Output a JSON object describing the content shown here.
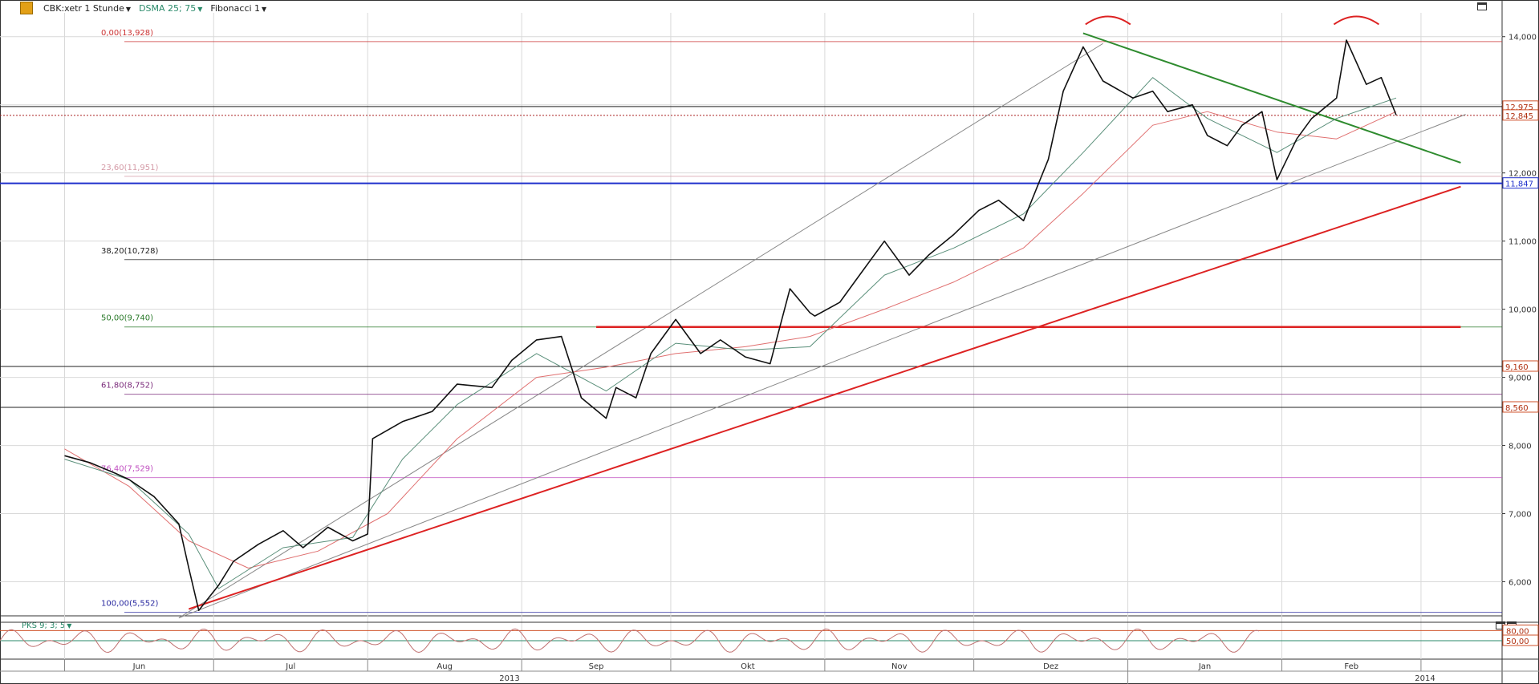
{
  "header": {
    "symbol": "CBK:xetr 1 Stunde",
    "indicator": "DSMA 25; 75",
    "tool": "Fibonacci 1"
  },
  "colors": {
    "grid": "#d9d9d9",
    "price": "#111111",
    "ma_fast": "#5a8f7a",
    "ma_slow": "#e07070",
    "trend_red": "#dd2222",
    "trend_green": "#2e8b2e",
    "blue_line": "#1f2fcc",
    "fib_pink": "#e890e0"
  },
  "chart_data": {
    "type": "line",
    "title": "CBK:xetr 1 Stunde",
    "ylim": [
      5500,
      14350
    ],
    "y_ticks": [
      {
        "value": 6000,
        "label": "6,000"
      },
      {
        "value": 7000,
        "label": "7,000"
      },
      {
        "value": 8000,
        "label": "8,000"
      },
      {
        "value": 9000,
        "label": "9,000"
      },
      {
        "value": 10000,
        "label": "10,000"
      },
      {
        "value": 11000,
        "label": "11,000"
      },
      {
        "value": 12000,
        "label": "12,000"
      },
      {
        "value": 13000,
        "label": "13,000"
      },
      {
        "value": 14000,
        "label": "14,000"
      }
    ],
    "months": [
      "Jun",
      "Jul",
      "Aug",
      "Sep",
      "Okt",
      "Nov",
      "Dez",
      "Jan",
      "Feb"
    ],
    "years": [
      "2013",
      "2014"
    ],
    "fibonacci": [
      {
        "label": "0,00(13,928)",
        "value": 13928,
        "color": "#cc3333"
      },
      {
        "label": "23,60(11,951)",
        "value": 11951,
        "color": "#d49aa6"
      },
      {
        "label": "38,20(10,728)",
        "value": 10728,
        "color": "#222222"
      },
      {
        "label": "50,00(9,740)",
        "value": 9740,
        "color": "#2a7a2a"
      },
      {
        "label": "61,80(8,752)",
        "value": 8752,
        "color": "#7a2a7a"
      },
      {
        "label": "76,40(7,529)",
        "value": 7529,
        "color": "#c050c0"
      },
      {
        "label": "100,00(5,552)",
        "value": 5552,
        "color": "#2a2aa0"
      }
    ],
    "price_markers": [
      {
        "value": 12975,
        "label": "12,975",
        "color": "#222222"
      },
      {
        "value": 12845,
        "label": "12,845",
        "color": "#222222"
      },
      {
        "value": 11847,
        "label": "11,847",
        "color": "#1f2fcc"
      },
      {
        "value": 9160,
        "label": "9,160",
        "color": "#222222"
      },
      {
        "value": 8560,
        "label": "8,560",
        "color": "#222222"
      }
    ],
    "series": [
      {
        "name": "CBK",
        "x": [
          "2013-06-01",
          "2013-06-06",
          "2013-06-11",
          "2013-06-14",
          "2013-06-19",
          "2013-06-24",
          "2013-06-26",
          "2013-06-28",
          "2013-07-02",
          "2013-07-05",
          "2013-07-10",
          "2013-07-15",
          "2013-07-19",
          "2013-07-24",
          "2013-07-29",
          "2013-08-01",
          "2013-08-02",
          "2013-08-08",
          "2013-08-14",
          "2013-08-19",
          "2013-08-26",
          "2013-08-30",
          "2013-09-04",
          "2013-09-09",
          "2013-09-13",
          "2013-09-18",
          "2013-09-20",
          "2013-09-24",
          "2013-09-27",
          "2013-10-02",
          "2013-10-07",
          "2013-10-11",
          "2013-10-16",
          "2013-10-21",
          "2013-10-25",
          "2013-10-29",
          "2013-10-30",
          "2013-11-04",
          "2013-11-08",
          "2013-11-13",
          "2013-11-18",
          "2013-11-22",
          "2013-11-27",
          "2013-12-02",
          "2013-12-06",
          "2013-12-11",
          "2013-12-16",
          "2013-12-19",
          "2013-12-23",
          "2013-12-27",
          "2014-01-02",
          "2014-01-06",
          "2014-01-09",
          "2014-01-14",
          "2014-01-17",
          "2014-01-21",
          "2014-01-24",
          "2014-01-28",
          "2014-01-31",
          "2014-02-04",
          "2014-02-07",
          "2014-02-12",
          "2014-02-14",
          "2014-02-18",
          "2014-02-21",
          "2014-02-24"
        ],
        "values": [
          7850,
          7750,
          7600,
          7500,
          7250,
          6850,
          6200,
          5580,
          5950,
          6300,
          6550,
          6750,
          6500,
          6800,
          6600,
          6700,
          8100,
          8350,
          8500,
          8900,
          8850,
          9250,
          9550,
          9600,
          8700,
          8400,
          8850,
          8700,
          9350,
          9850,
          9350,
          9550,
          9300,
          9200,
          10300,
          9950,
          9900,
          10100,
          10500,
          11000,
          10500,
          10800,
          11100,
          11450,
          11600,
          11300,
          12200,
          13200,
          13850,
          13350,
          13100,
          13200,
          12900,
          13000,
          12550,
          12400,
          12700,
          12900,
          11900,
          12500,
          12800,
          13100,
          13950,
          13300,
          13400,
          12850
        ]
      },
      {
        "name": "DSMA 25",
        "x": [
          "2013-06-01",
          "2013-06-14",
          "2013-06-26",
          "2013-07-02",
          "2013-07-15",
          "2013-07-29",
          "2013-08-08",
          "2013-08-19",
          "2013-09-04",
          "2013-09-18",
          "2013-10-02",
          "2013-10-16",
          "2013-10-29",
          "2013-11-13",
          "2013-11-27",
          "2013-12-11",
          "2013-12-23",
          "2014-01-06",
          "2014-01-17",
          "2014-01-31",
          "2014-02-12",
          "2014-02-24"
        ],
        "values": [
          7800,
          7500,
          6700,
          5900,
          6500,
          6650,
          7800,
          8600,
          9350,
          8800,
          9500,
          9400,
          9450,
          10500,
          10900,
          11400,
          12300,
          13400,
          12800,
          12300,
          12800,
          13100
        ]
      },
      {
        "name": "DSMA 75",
        "x": [
          "2013-06-01",
          "2013-06-14",
          "2013-06-26",
          "2013-07-08",
          "2013-07-22",
          "2013-08-05",
          "2013-08-19",
          "2013-09-04",
          "2013-09-18",
          "2013-10-02",
          "2013-10-16",
          "2013-10-29",
          "2013-11-13",
          "2013-11-27",
          "2013-12-11",
          "2013-12-23",
          "2014-01-06",
          "2014-01-17",
          "2014-01-31",
          "2014-02-12",
          "2014-02-24"
        ],
        "values": [
          7950,
          7400,
          6600,
          6200,
          6450,
          7000,
          8100,
          9000,
          9150,
          9350,
          9450,
          9600,
          10000,
          10400,
          10900,
          11700,
          12700,
          12900,
          12600,
          12500,
          12900
        ]
      }
    ],
    "oscillator": {
      "name": "PKS 9; 3; 5",
      "levels": [
        {
          "value": 80,
          "label": "80,00"
        },
        {
          "value": 50,
          "label": "50,00"
        }
      ]
    }
  }
}
